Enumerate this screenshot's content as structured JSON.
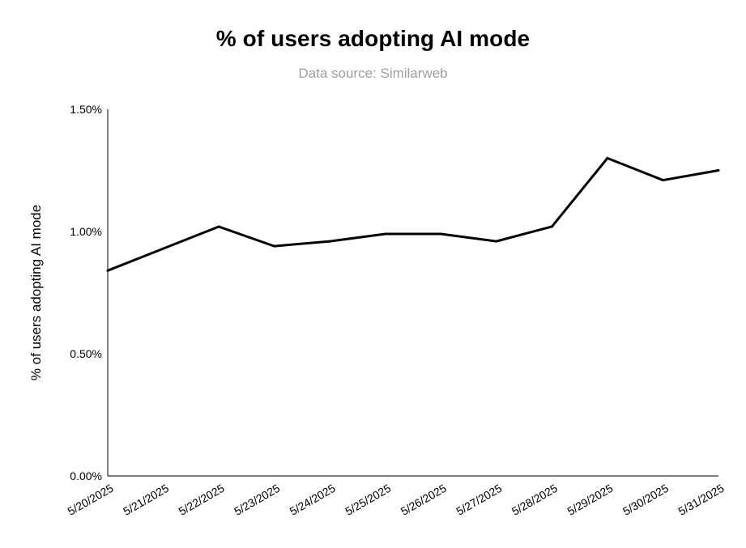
{
  "chart_data": {
    "type": "line",
    "title": "% of users adopting AI mode",
    "subtitle": "Data source: Similarweb",
    "xlabel": "",
    "ylabel": "% of users adopting AI mode",
    "categories": [
      "5/20/2025",
      "5/21/2025",
      "5/22/2025",
      "5/23/2025",
      "5/24/2025",
      "5/25/2025",
      "5/26/2025",
      "5/27/2025",
      "5/28/2025",
      "5/29/2025",
      "5/30/2025",
      "5/31/2025"
    ],
    "series": [
      {
        "name": "% of users adopting AI mode",
        "values": [
          0.84,
          0.93,
          1.02,
          0.94,
          0.96,
          0.99,
          0.99,
          0.96,
          1.02,
          1.3,
          1.21,
          1.25
        ]
      }
    ],
    "ylim": [
      0,
      1.5
    ],
    "yticks": [
      0,
      0.5,
      1.0,
      1.5
    ],
    "ytick_labels": [
      "0.00%",
      "0.50%",
      "1.00%",
      "1.50%"
    ],
    "grid": false,
    "legend": "none",
    "line_color": "#000000"
  }
}
